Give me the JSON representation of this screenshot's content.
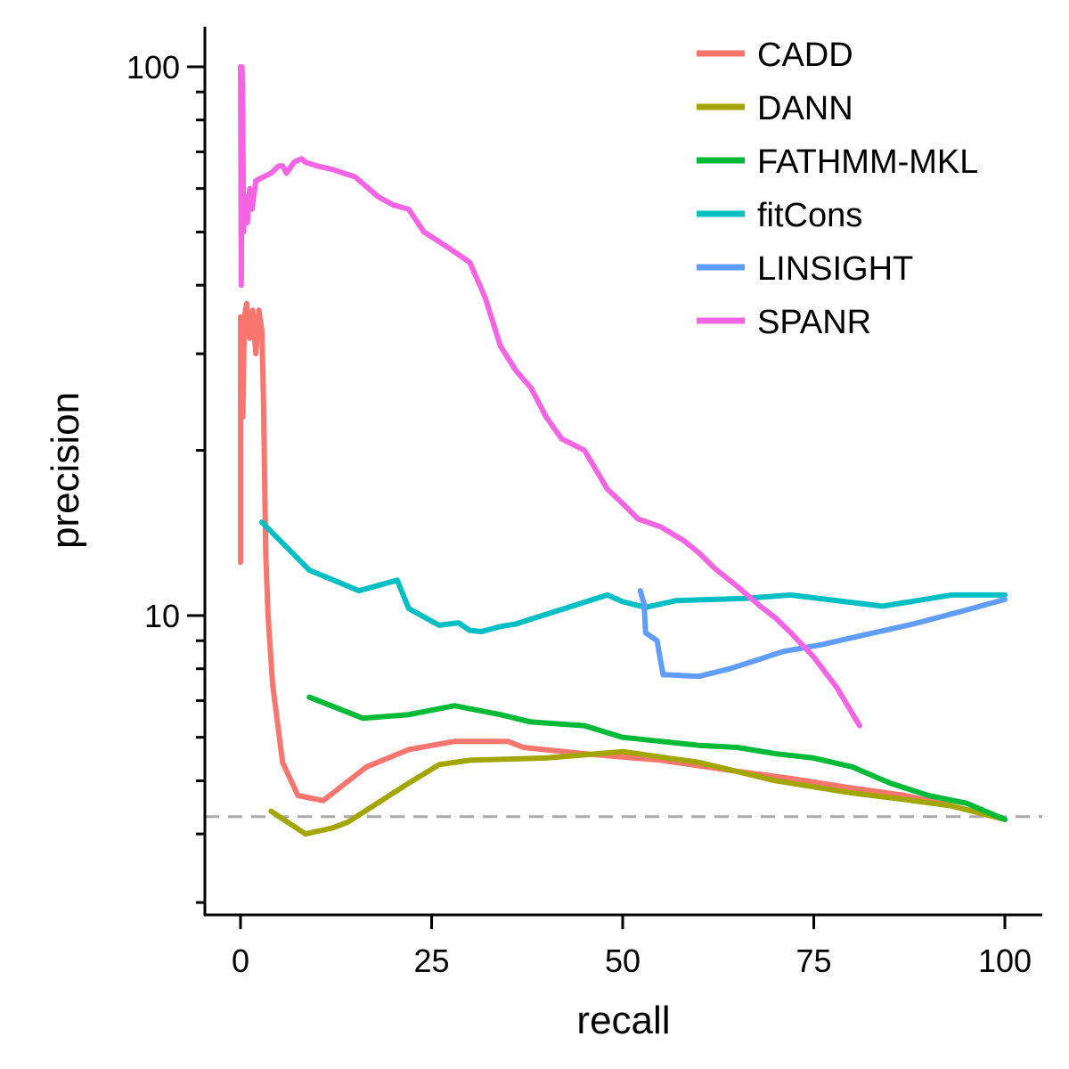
{
  "chart_data": {
    "type": "line",
    "xlabel": "recall",
    "ylabel": "precision",
    "y_scale": "log",
    "xlim": [
      0,
      100
    ],
    "ylim": [
      2.9,
      115
    ],
    "x_ticks": [
      0,
      25,
      50,
      75,
      100
    ],
    "x_tick_labels": [
      "0",
      "25",
      "50",
      "75",
      "100"
    ],
    "y_major_ticks": [
      10,
      100
    ],
    "y_tick_labels": [
      "10",
      "100"
    ],
    "y_minor_ticks": [
      3,
      4,
      5,
      6,
      7,
      8,
      9,
      20,
      30,
      40,
      50,
      60,
      70,
      80,
      90
    ],
    "baseline": {
      "y": 4.3,
      "style": "dashed",
      "color": "#aaaaaa"
    },
    "grid": false,
    "legend_position": "top-right",
    "series": [
      {
        "name": "CADD",
        "color": "#F8766D",
        "x": [
          0,
          0,
          0.3,
          0.5,
          0.8,
          1.2,
          1.6,
          2.0,
          2.4,
          2.8,
          3.0,
          3.3,
          3.6,
          4.2,
          5.5,
          7.5,
          10.8,
          16.5,
          22,
          28,
          35,
          37,
          45,
          55,
          65,
          72,
          80,
          87,
          93,
          100
        ],
        "y": [
          12.5,
          35,
          23,
          35,
          37,
          32,
          36,
          30,
          36,
          33,
          25,
          13,
          10,
          7.5,
          5.4,
          4.7,
          4.6,
          5.3,
          5.7,
          5.9,
          5.9,
          5.75,
          5.6,
          5.45,
          5.2,
          5.05,
          4.85,
          4.7,
          4.5,
          4.25
        ]
      },
      {
        "name": "DANN",
        "color": "#A3A500",
        "x": [
          4,
          8.5,
          12,
          14,
          22,
          26,
          30,
          40,
          50,
          60,
          70,
          80,
          87,
          93,
          100
        ],
        "y": [
          4.4,
          4.0,
          4.1,
          4.2,
          4.95,
          5.35,
          5.45,
          5.5,
          5.65,
          5.4,
          5.0,
          4.75,
          4.62,
          4.5,
          4.25
        ]
      },
      {
        "name": "FATHMM-MKL",
        "color": "#00BA38",
        "x": [
          9,
          16,
          22,
          28,
          34,
          38,
          45,
          50,
          55,
          60,
          65,
          70,
          75,
          80,
          85,
          90,
          95,
          100
        ],
        "y": [
          7.1,
          6.5,
          6.6,
          6.85,
          6.6,
          6.4,
          6.3,
          6.0,
          5.9,
          5.8,
          5.75,
          5.6,
          5.5,
          5.3,
          4.95,
          4.7,
          4.55,
          4.25
        ]
      },
      {
        "name": "fitCons",
        "color": "#00BFC4",
        "x": [
          2.8,
          9,
          15.5,
          20.5,
          22,
          26,
          28.5,
          30,
          31.5,
          34,
          36,
          38,
          48,
          50,
          53,
          57,
          66,
          72,
          84,
          93,
          100
        ],
        "y": [
          14.8,
          12.1,
          11.1,
          11.6,
          10.3,
          9.6,
          9.7,
          9.4,
          9.35,
          9.55,
          9.65,
          9.85,
          10.9,
          10.6,
          10.35,
          10.65,
          10.75,
          10.9,
          10.4,
          10.9,
          10.9
        ]
      },
      {
        "name": "LINSIGHT",
        "color": "#619CFF",
        "x": [
          52.3,
          52.8,
          53,
          54.5,
          55,
          55.3,
          56,
          60,
          64,
          67,
          71,
          76,
          82,
          88,
          94,
          100
        ],
        "y": [
          11.1,
          10.5,
          9.3,
          9.0,
          8.2,
          7.8,
          7.8,
          7.75,
          8.0,
          8.25,
          8.6,
          8.85,
          9.25,
          9.65,
          10.15,
          10.7
        ]
      },
      {
        "name": "SPANR",
        "color": "#F564E3",
        "x": [
          0,
          0.1,
          0.2,
          0.3,
          0.4,
          0.6,
          0.9,
          1.2,
          1.5,
          2.0,
          3,
          4,
          5,
          5.5,
          6,
          7,
          8,
          8.5,
          10,
          12,
          15,
          18,
          20,
          22,
          24,
          26,
          28,
          30,
          32,
          34,
          36,
          38,
          40,
          42,
          45,
          48,
          50,
          52,
          55,
          58,
          60,
          62,
          65,
          68,
          70,
          72,
          75,
          78,
          81
        ],
        "y": [
          100,
          40,
          100,
          80,
          50,
          58,
          52,
          60,
          55,
          62,
          63,
          64,
          66,
          66,
          64,
          67,
          68,
          67,
          66,
          65,
          63,
          58,
          56,
          55,
          50,
          48,
          46,
          44,
          38,
          31,
          28,
          26,
          23,
          21,
          20,
          17,
          16,
          15,
          14.5,
          13.7,
          13.0,
          12.2,
          11.3,
          10.4,
          9.9,
          9.3,
          8.4,
          7.4,
          6.3
        ]
      }
    ]
  }
}
